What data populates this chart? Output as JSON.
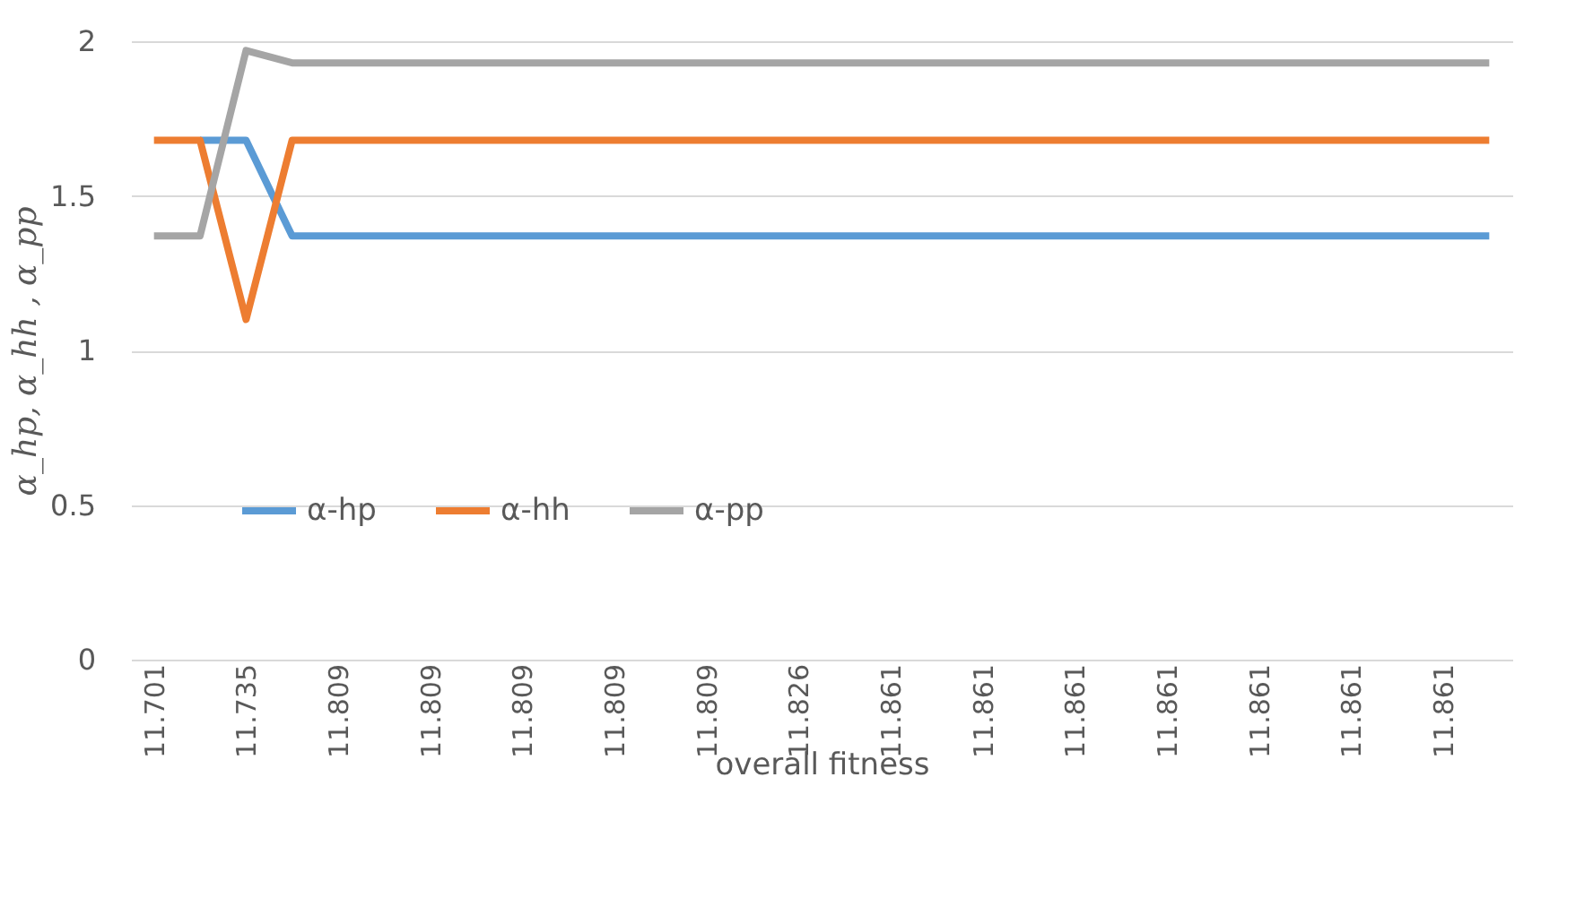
{
  "chart_data": {
    "type": "line",
    "xlabel": "overall fitness",
    "ylabel": "α_hp, α_hh , α_pp",
    "categories": [
      "11.701",
      null,
      "11.735",
      null,
      "11.809",
      null,
      "11.809",
      null,
      "11.809",
      null,
      "11.809",
      null,
      "11.809",
      null,
      "11.826",
      null,
      "11.861",
      null,
      "11.861",
      null,
      "11.861",
      null,
      "11.861",
      null,
      "11.861",
      null,
      "11.861",
      null,
      "11.861",
      null
    ],
    "series": [
      {
        "name": "α-hp",
        "color": "#5b9bd5",
        "values": [
          null,
          1.68,
          1.68,
          1.37,
          1.37,
          1.37,
          1.37,
          1.37,
          1.37,
          1.37,
          1.37,
          1.37,
          1.37,
          1.37,
          1.37,
          1.37,
          1.37,
          1.37,
          1.37,
          1.37,
          1.37,
          1.37,
          1.37,
          1.37,
          1.37,
          1.37,
          1.37,
          1.37,
          1.37,
          1.37
        ]
      },
      {
        "name": "α-hh",
        "color": "#ed7d31",
        "values": [
          1.68,
          1.68,
          1.1,
          1.68,
          1.68,
          1.68,
          1.68,
          1.68,
          1.68,
          1.68,
          1.68,
          1.68,
          1.68,
          1.68,
          1.68,
          1.68,
          1.68,
          1.68,
          1.68,
          1.68,
          1.68,
          1.68,
          1.68,
          1.68,
          1.68,
          1.68,
          1.68,
          1.68,
          1.68,
          1.68
        ]
      },
      {
        "name": "α-pp",
        "color": "#a5a5a5",
        "values": [
          1.37,
          1.37,
          1.97,
          1.93,
          1.93,
          1.93,
          1.93,
          1.93,
          1.93,
          1.93,
          1.93,
          1.93,
          1.93,
          1.93,
          1.93,
          1.93,
          1.93,
          1.93,
          1.93,
          1.93,
          1.93,
          1.93,
          1.93,
          1.93,
          1.93,
          1.93,
          1.93,
          1.93,
          1.93,
          1.93
        ]
      }
    ],
    "ylim": [
      0,
      2
    ],
    "yticks": [
      0,
      0.5,
      1,
      1.5,
      2
    ],
    "grid": "y",
    "legend": "bottom",
    "marker": "none",
    "line_style": "solid"
  }
}
